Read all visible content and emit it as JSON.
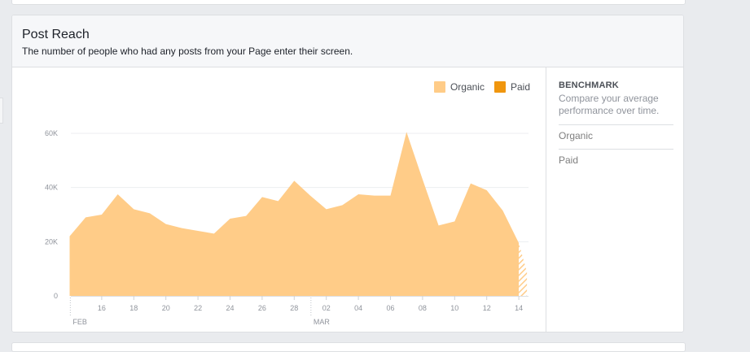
{
  "card": {
    "title": "Post Reach",
    "subtitle": "The number of people who had any posts from your Page enter their screen."
  },
  "legend": [
    {
      "label": "Organic",
      "color": "#ffcc88"
    },
    {
      "label": "Paid",
      "color": "#f0960e"
    }
  ],
  "benchmark": {
    "title": "BENCHMARK",
    "description": "Compare your average performance over time.",
    "items": [
      "Organic",
      "Paid"
    ]
  },
  "chart_data": {
    "type": "area",
    "title": "",
    "xlabel": "",
    "ylabel": "",
    "ylim": [
      0,
      60000
    ],
    "y_ticks": [
      0,
      20000,
      40000,
      60000
    ],
    "y_tick_labels": [
      "0",
      "20K",
      "40K",
      "60K"
    ],
    "x_ticks": [
      {
        "day": 16,
        "label": "16"
      },
      {
        "day": 18,
        "label": "18"
      },
      {
        "day": 20,
        "label": "20"
      },
      {
        "day": 22,
        "label": "22"
      },
      {
        "day": 24,
        "label": "24"
      },
      {
        "day": 26,
        "label": "26"
      },
      {
        "day": 28,
        "label": "28"
      },
      {
        "day": 30,
        "label": "02"
      },
      {
        "day": 32,
        "label": "04"
      },
      {
        "day": 34,
        "label": "06"
      },
      {
        "day": 36,
        "label": "08"
      },
      {
        "day": 38,
        "label": "10"
      },
      {
        "day": 40,
        "label": "12"
      },
      {
        "day": 42,
        "label": "14"
      }
    ],
    "month_labels": [
      {
        "day": 14.5,
        "label": "FEB"
      },
      {
        "day": 29.5,
        "label": "MAR"
      }
    ],
    "grid": true,
    "legend_position": "top-right",
    "series": [
      {
        "name": "Organic",
        "color": "#ffcc88",
        "x": [
          "Feb 14",
          "Feb 15",
          "Feb 16",
          "Feb 17",
          "Feb 18",
          "Feb 19",
          "Feb 20",
          "Feb 21",
          "Feb 22",
          "Feb 23",
          "Feb 24",
          "Feb 25",
          "Feb 26",
          "Feb 27",
          "Feb 28",
          "Mar 1",
          "Mar 2",
          "Mar 3",
          "Mar 4",
          "Mar 5",
          "Mar 6",
          "Mar 7",
          "Mar 8",
          "Mar 9",
          "Mar 10",
          "Mar 11",
          "Mar 12",
          "Mar 13",
          "Mar 14"
        ],
        "values": [
          22000,
          29000,
          30000,
          37500,
          32000,
          30500,
          26500,
          25000,
          24000,
          23000,
          28500,
          29500,
          36500,
          35000,
          42500,
          37000,
          32000,
          33500,
          37500,
          37000,
          37000,
          60500,
          43000,
          26000,
          27500,
          41500,
          39000,
          31500,
          19500
        ]
      },
      {
        "name": "Paid",
        "color": "#f0960e",
        "values": [
          0,
          0,
          0,
          0,
          0,
          0,
          0,
          0,
          0,
          0,
          0,
          0,
          0,
          0,
          0,
          0,
          0,
          0,
          0,
          0,
          0,
          0,
          0,
          0,
          0,
          0,
          0,
          0,
          0
        ]
      }
    ]
  }
}
